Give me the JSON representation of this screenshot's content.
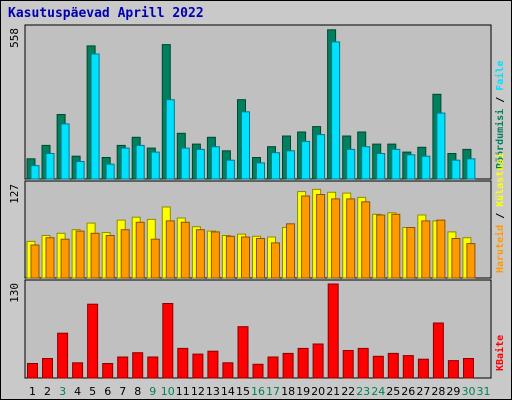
{
  "title": "Kasutuspäevad Aprill 2022",
  "colors": {
    "background": "#c9c9c9",
    "plot": "#c0c0c0",
    "kulastusi": "#ffff00",
    "haruteid": "#ff9900",
    "poordumisi": "#00805c",
    "faile": "#00e0ff",
    "kbaite": "#ff0000",
    "weekday_text": "#000000",
    "weekend_text": "#00805c"
  },
  "chart_data": [
    {
      "type": "bar",
      "title": "Kasutuspäevad Aprill 2022",
      "categories": [
        "1",
        "2",
        "3",
        "4",
        "5",
        "6",
        "7",
        "8",
        "9",
        "10",
        "11",
        "12",
        "13",
        "14",
        "15",
        "16",
        "17",
        "18",
        "19",
        "20",
        "21",
        "22",
        "23",
        "24",
        "25",
        "26",
        "27",
        "28",
        "29",
        "30",
        "31"
      ],
      "weekend_days": [
        "3",
        "9",
        "10",
        "16",
        "17",
        "23",
        "24",
        "30",
        "31"
      ],
      "y_tick_label": "558",
      "ylim": [
        0,
        558
      ],
      "series": [
        {
          "name": "Pöördumisi",
          "values": [
            75,
            125,
            240,
            85,
            495,
            80,
            125,
            155,
            115,
            500,
            170,
            130,
            155,
            105,
            295,
            80,
            120,
            160,
            175,
            195,
            555,
            160,
            175,
            130,
            130,
            100,
            118,
            315,
            95,
            110,
            0
          ]
        },
        {
          "name": "Faile",
          "values": [
            50,
            95,
            205,
            65,
            465,
            55,
            115,
            125,
            100,
            295,
            115,
            110,
            120,
            70,
            250,
            60,
            98,
            105,
            140,
            165,
            510,
            110,
            120,
            95,
            110,
            90,
            85,
            245,
            70,
            75,
            0
          ]
        }
      ],
      "legend": [
        "Pöördumisi",
        "Faile"
      ],
      "legend_position": "right"
    },
    {
      "type": "bar",
      "categories": [
        "1",
        "2",
        "3",
        "4",
        "5",
        "6",
        "7",
        "8",
        "9",
        "10",
        "11",
        "12",
        "13",
        "14",
        "15",
        "16",
        "17",
        "18",
        "19",
        "20",
        "21",
        "22",
        "23",
        "24",
        "25",
        "26",
        "27",
        "28",
        "29",
        "30",
        "31"
      ],
      "y_tick_label": "127",
      "ylim": [
        0,
        127
      ],
      "series": [
        {
          "name": "Külastusi",
          "values": [
            50,
            58,
            61,
            66,
            75,
            62,
            79,
            83,
            80,
            97,
            82,
            70,
            64,
            58,
            60,
            57,
            56,
            69,
            118,
            121,
            117,
            116,
            110,
            87,
            89,
            69,
            86,
            78,
            63,
            55,
            0
          ]
        },
        {
          "name": "Haruteid",
          "values": [
            45,
            55,
            53,
            64,
            61,
            58,
            66,
            76,
            53,
            78,
            76,
            66,
            63,
            57,
            56,
            54,
            48,
            74,
            112,
            114,
            108,
            108,
            104,
            86,
            87,
            69,
            78,
            79,
            54,
            47,
            0
          ]
        }
      ],
      "legend": [
        "Haruteid",
        "Külastusi"
      ],
      "legend_position": "right"
    },
    {
      "type": "bar",
      "categories": [
        "1",
        "2",
        "3",
        "4",
        "5",
        "6",
        "7",
        "8",
        "9",
        "10",
        "11",
        "12",
        "13",
        "14",
        "15",
        "16",
        "17",
        "18",
        "19",
        "20",
        "21",
        "22",
        "23",
        "24",
        "25",
        "26",
        "27",
        "28",
        "29",
        "30",
        "31"
      ],
      "y_tick_label": "130",
      "ylim": [
        0,
        130
      ],
      "series": [
        {
          "name": "KBaite",
          "values": [
            20,
            27,
            62,
            21,
            102,
            20,
            29,
            35,
            29,
            103,
            41,
            33,
            37,
            21,
            71,
            19,
            29,
            34,
            41,
            47,
            130,
            38,
            41,
            30,
            34,
            31,
            26,
            76,
            24,
            27,
            0
          ]
        }
      ],
      "legend": [
        "KBaite"
      ],
      "legend_position": "right"
    }
  ]
}
